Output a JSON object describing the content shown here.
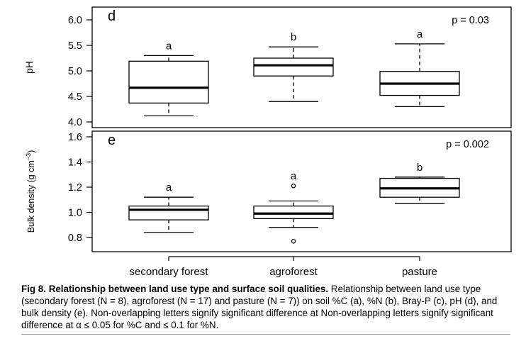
{
  "figure": {
    "caption_title": "Fig 8. Relationship between land use type and surface soil qualities.",
    "caption_text": " Relationship between land use type (secondary forest (N = 8), agroforest (N = 17) and pasture (N = 7)) on soil %C (a), %N (b), Bray-P (c), pH (d), and bulk density (e). Non-overlapping letters signify significant difference at Non-overlapping letters signify significant difference at α ≤ 0.05 for %C and ≤ 0.1 for %N."
  },
  "chart_data": [
    {
      "type": "box",
      "panel_letter": "d",
      "pvalue_label": "p = 0.03",
      "ylabel": "pH",
      "xlabel": "",
      "categories": [
        "secondary forest",
        "agroforest",
        "pasture"
      ],
      "ylim": [
        4.0,
        6.2
      ],
      "yticks": [
        4.0,
        4.5,
        5.0,
        5.5,
        6.0
      ],
      "ytick_labels": [
        "4.0",
        "4.5",
        "5.0",
        "5.5",
        "6.0"
      ],
      "boxes": [
        {
          "category": "secondary forest",
          "whisker_low": 4.12,
          "q1": 4.37,
          "median": 4.67,
          "q3": 5.19,
          "whisker_high": 5.3,
          "outliers": [],
          "letter": "a"
        },
        {
          "category": "agroforest",
          "whisker_low": 4.4,
          "q1": 4.9,
          "median": 5.11,
          "q3": 5.25,
          "whisker_high": 5.47,
          "outliers": [],
          "letter": "b"
        },
        {
          "category": "pasture",
          "whisker_low": 4.3,
          "q1": 4.52,
          "median": 4.75,
          "q3": 4.99,
          "whisker_high": 5.53,
          "outliers": [],
          "letter": "a"
        }
      ]
    },
    {
      "type": "box",
      "panel_letter": "e",
      "pvalue_label": "p = 0.002",
      "ylabel": "Bulk density (g cm",
      "ylabel_sup": "−3",
      "ylabel_close": ")",
      "xlabel": "",
      "categories": [
        "secondary forest",
        "agroforest",
        "pasture"
      ],
      "ylim": [
        0.7,
        1.6
      ],
      "yticks": [
        0.8,
        1.0,
        1.2,
        1.4,
        1.6
      ],
      "ytick_labels": [
        "0.8",
        "1.0",
        "1.2",
        "1.4",
        "1.6"
      ],
      "boxes": [
        {
          "category": "secondary forest",
          "whisker_low": 0.84,
          "q1": 0.94,
          "median": 1.02,
          "q3": 1.05,
          "whisker_high": 1.12,
          "outliers": [],
          "letter": "a"
        },
        {
          "category": "agroforest",
          "whisker_low": 0.88,
          "q1": 0.95,
          "median": 0.99,
          "q3": 1.05,
          "whisker_high": 1.09,
          "outliers": [
            1.21,
            0.77
          ],
          "letter": "a"
        },
        {
          "category": "pasture",
          "whisker_low": 1.07,
          "q1": 1.12,
          "median": 1.19,
          "q3": 1.27,
          "whisker_high": 1.28,
          "outliers": [],
          "letter": "b"
        }
      ]
    }
  ]
}
